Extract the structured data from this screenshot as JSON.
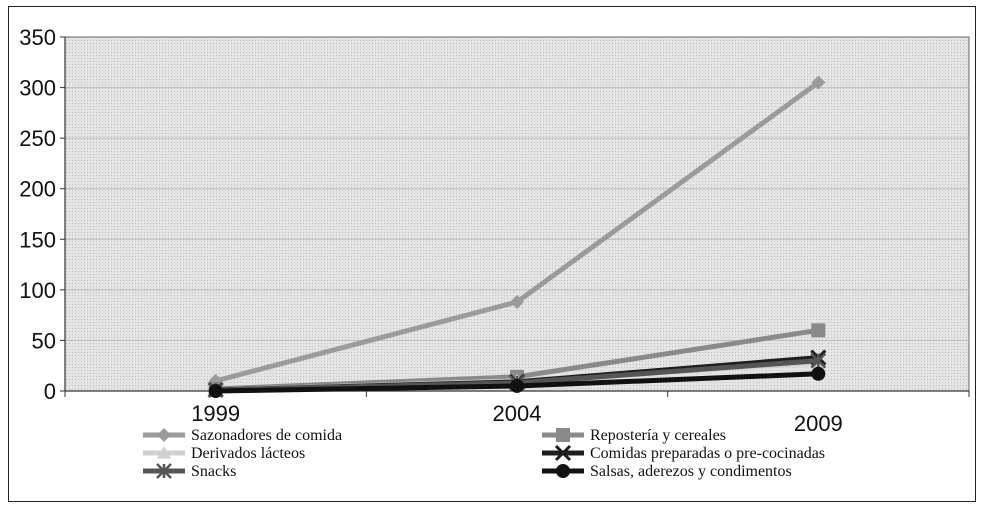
{
  "chart_data": {
    "type": "line",
    "categories": [
      "1999",
      "2004",
      "2009"
    ],
    "ylim": [
      0,
      350
    ],
    "yticks": [
      0,
      50,
      100,
      150,
      200,
      250,
      300,
      350
    ],
    "grid": true,
    "legend_position": "bottom",
    "series": [
      {
        "name": "Sazonadores de comida",
        "values": [
          10,
          88,
          305
        ],
        "color": "#9b9b9b",
        "marker": "diamond"
      },
      {
        "name": "Repostería y cereales",
        "values": [
          2,
          14,
          60
        ],
        "color": "#8a8a8a",
        "marker": "square"
      },
      {
        "name": "Derivados lácteos",
        "values": [
          1,
          10,
          28
        ],
        "color": "#d0d0d0",
        "marker": "triangle"
      },
      {
        "name": "Comidas preparadas o pre-cocinadas",
        "values": [
          1,
          9,
          33
        ],
        "color": "#1e1e1e",
        "marker": "x"
      },
      {
        "name": "Snacks",
        "values": [
          1,
          8,
          30
        ],
        "color": "#555555",
        "marker": "star"
      },
      {
        "name": "Salsas, aderezos y condimentos",
        "values": [
          0,
          5,
          17
        ],
        "color": "#111111",
        "marker": "circle"
      }
    ]
  }
}
